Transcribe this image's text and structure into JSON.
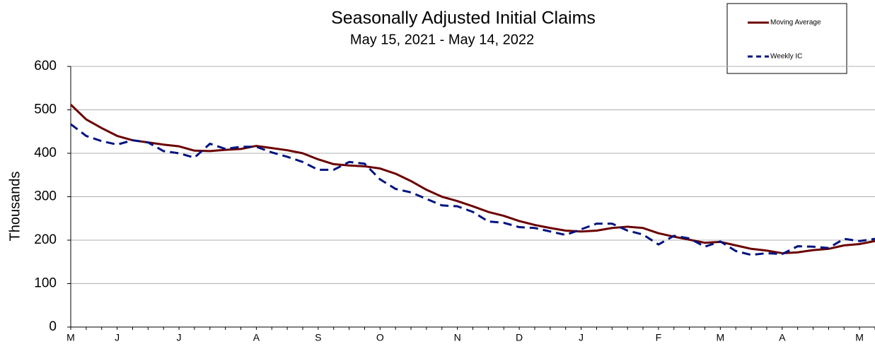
{
  "chart_data": {
    "type": "line",
    "title": "Seasonally Adjusted Initial Claims",
    "subtitle": "May 15, 2021 - May 14, 2022",
    "y_label": "Thousands",
    "categories": [
      "M",
      null,
      null,
      "J",
      null,
      null,
      null,
      "J",
      null,
      null,
      null,
      null,
      "A",
      null,
      null,
      null,
      "S",
      null,
      null,
      null,
      "O",
      null,
      null,
      null,
      null,
      "N",
      null,
      null,
      null,
      "D",
      null,
      null,
      null,
      "J",
      null,
      null,
      null,
      null,
      "F",
      null,
      null,
      null,
      "M",
      null,
      null,
      null,
      "A",
      null,
      null,
      null,
      null,
      "M",
      null
    ],
    "series": [
      {
        "name": "Moving Average",
        "color": "#6b0000",
        "dashed": false,
        "values": [
          512,
          478,
          458,
          440,
          430,
          425,
          420,
          416,
          406,
          405,
          408,
          410,
          417,
          412,
          407,
          400,
          386,
          375,
          372,
          370,
          365,
          353,
          336,
          316,
          300,
          290,
          278,
          265,
          256,
          244,
          235,
          228,
          222,
          220,
          222,
          228,
          231,
          228,
          216,
          208,
          201,
          194,
          196,
          188,
          180,
          176,
          170,
          172,
          177,
          180,
          188,
          191,
          198
        ]
      },
      {
        "name": "Weekly IC",
        "color": "#00137f",
        "dashed": true,
        "values": [
          467,
          440,
          428,
          420,
          430,
          425,
          405,
          400,
          390,
          422,
          410,
          415,
          415,
          402,
          392,
          380,
          362,
          362,
          380,
          376,
          340,
          318,
          310,
          295,
          280,
          278,
          265,
          243,
          240,
          230,
          228,
          220,
          212,
          225,
          238,
          238,
          222,
          213,
          190,
          210,
          204,
          185,
          197,
          175,
          166,
          170,
          168,
          186,
          185,
          182,
          203,
          198,
          203
        ]
      }
    ],
    "ylim": [
      0,
      600
    ],
    "yticks": [
      0,
      100,
      200,
      300,
      400,
      500,
      600
    ],
    "grid": true,
    "legend": "top-right"
  }
}
